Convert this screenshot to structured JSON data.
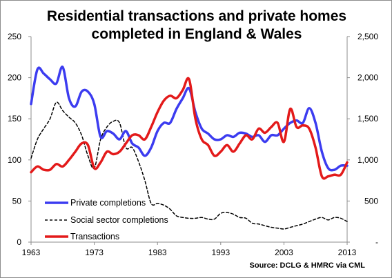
{
  "chart_data": {
    "type": "line",
    "title": "Residential transactions and private homes completed in England & Wales",
    "title_lines": [
      "Residential transactions and private homes",
      "completed in England & Wales"
    ],
    "source": "Source: DCLG & HMRC via CML",
    "x_ticks": [
      "1963",
      "1973",
      "1983",
      "1993",
      "2003",
      "2013"
    ],
    "xlim": [
      1963,
      2013
    ],
    "y_left": {
      "ylim": [
        0,
        250
      ],
      "ticks": [
        "0",
        "50",
        "100",
        "150",
        "200",
        "250"
      ]
    },
    "y_right": {
      "ylim": [
        0,
        2500
      ],
      "ticks": [
        "-",
        "500",
        "1,000",
        "1,500",
        "2,000",
        "2,500"
      ]
    },
    "grid": false,
    "legend_position": "bottom-left",
    "series": [
      {
        "name": "Private completions",
        "axis": "left",
        "color": "#3c3cf0",
        "style": "solid",
        "x": [
          1963,
          1964,
          1965,
          1966,
          1967,
          1968,
          1969,
          1970,
          1971,
          1972,
          1973,
          1974,
          1975,
          1976,
          1977,
          1978,
          1979,
          1980,
          1981,
          1982,
          1983,
          1984,
          1985,
          1986,
          1987,
          1988,
          1989,
          1990,
          1991,
          1992,
          1993,
          1994,
          1995,
          1996,
          1997,
          1998,
          1999,
          2000,
          2001,
          2002,
          2003,
          2004,
          2005,
          2006,
          2007,
          2008,
          2009,
          2010,
          2011,
          2012,
          2013
        ],
        "values": [
          168,
          210,
          205,
          198,
          193,
          213,
          175,
          165,
          183,
          183,
          168,
          128,
          135,
          132,
          125,
          135,
          120,
          115,
          105,
          115,
          135,
          145,
          145,
          162,
          175,
          187,
          158,
          138,
          132,
          125,
          125,
          130,
          128,
          133,
          132,
          128,
          130,
          122,
          130,
          130,
          138,
          145,
          148,
          145,
          163,
          145,
          110,
          90,
          88,
          93,
          93
        ]
      },
      {
        "name": "Social sector completions",
        "axis": "right",
        "color": "#000000",
        "style": "dashed",
        "x": [
          1963,
          1964,
          1965,
          1966,
          1967,
          1968,
          1969,
          1970,
          1971,
          1972,
          1973,
          1974,
          1975,
          1976,
          1977,
          1978,
          1979,
          1980,
          1981,
          1982,
          1983,
          1984,
          1985,
          1986,
          1987,
          1988,
          1989,
          1990,
          1991,
          1992,
          1993,
          1994,
          1995,
          1996,
          1997,
          1998,
          1999,
          2000,
          2001,
          2002,
          2003,
          2004,
          2005,
          2006,
          2007,
          2008,
          2009,
          2010,
          2011,
          2012,
          2013
        ],
        "values": [
          1020,
          1250,
          1380,
          1500,
          1700,
          1600,
          1520,
          1450,
          1300,
          1050,
          900,
          1250,
          1400,
          1470,
          1450,
          1150,
          1150,
          980,
          750,
          470,
          470,
          450,
          400,
          320,
          300,
          290,
          290,
          300,
          280,
          280,
          350,
          360,
          340,
          300,
          290,
          230,
          220,
          200,
          180,
          170,
          160,
          180,
          200,
          220,
          250,
          280,
          300,
          270,
          300,
          290,
          250
        ]
      },
      {
        "name": "Transactions",
        "axis": "left",
        "color": "#e31a1a",
        "style": "solid",
        "x": [
          1963,
          1964,
          1965,
          1966,
          1967,
          1968,
          1969,
          1970,
          1971,
          1972,
          1973,
          1974,
          1975,
          1976,
          1977,
          1978,
          1979,
          1980,
          1981,
          1982,
          1983,
          1984,
          1985,
          1986,
          1987,
          1988,
          1989,
          1990,
          1991,
          1992,
          1993,
          1994,
          1995,
          1996,
          1997,
          1998,
          1999,
          2000,
          2001,
          2002,
          2003,
          2004,
          2005,
          2006,
          2007,
          2008,
          2009,
          2010,
          2011,
          2012,
          2013
        ],
        "values": [
          85,
          92,
          88,
          88,
          95,
          92,
          100,
          110,
          120,
          118,
          90,
          97,
          110,
          107,
          110,
          120,
          130,
          130,
          125,
          140,
          158,
          172,
          178,
          175,
          185,
          198,
          150,
          125,
          118,
          105,
          110,
          118,
          110,
          120,
          130,
          125,
          138,
          133,
          140,
          145,
          122,
          162,
          140,
          142,
          138,
          115,
          80,
          80,
          82,
          82,
          97
        ]
      }
    ]
  }
}
